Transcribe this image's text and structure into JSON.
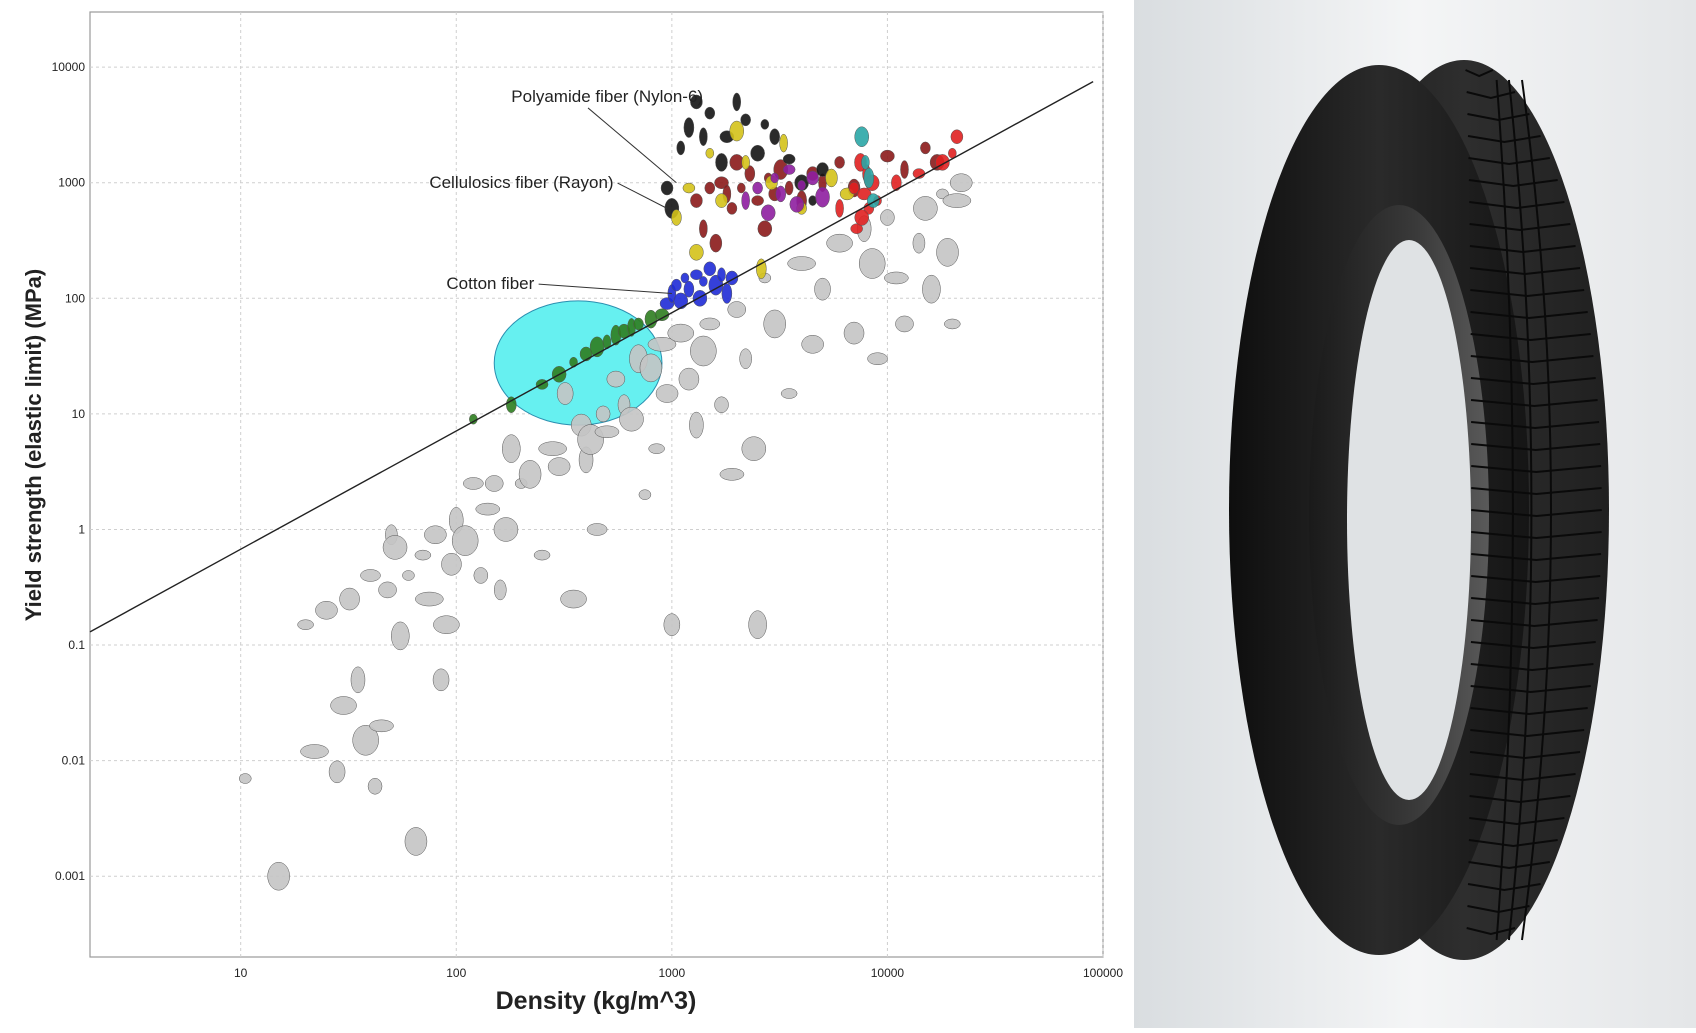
{
  "chart_data": {
    "type": "scatter",
    "title": "",
    "xlabel": "Density (kg/m^3)",
    "ylabel": "Yield strength (elastic limit) (MPa)",
    "x_scale": "log",
    "y_scale": "log",
    "xlim": [
      2,
      100000
    ],
    "ylim": [
      0.0002,
      30000
    ],
    "grid": true,
    "x_ticks": [
      {
        "value": 10,
        "label": "10"
      },
      {
        "value": 100,
        "label": "100"
      },
      {
        "value": 1000,
        "label": "1000"
      },
      {
        "value": 10000,
        "label": "10000"
      },
      {
        "value": 100000,
        "label": "100000"
      }
    ],
    "y_ticks": [
      {
        "value": 0.001,
        "label": "0.001"
      },
      {
        "value": 0.01,
        "label": "0.01"
      },
      {
        "value": 0.1,
        "label": "0.1"
      },
      {
        "value": 1,
        "label": "1"
      },
      {
        "value": 10,
        "label": "10"
      },
      {
        "value": 100,
        "label": "100"
      },
      {
        "value": 1000,
        "label": "1000"
      },
      {
        "value": 10000,
        "label": "10000"
      }
    ],
    "guideline": {
      "x": [
        2,
        90000
      ],
      "y": [
        0.13,
        7500
      ]
    },
    "highlight_region": {
      "x": [
        150,
        900
      ],
      "y": [
        8,
        95
      ]
    },
    "series": [
      {
        "color": "#c4c4c4",
        "points": [
          [
            10.5,
            0.007
          ],
          [
            15,
            0.001
          ],
          [
            20,
            0.15
          ],
          [
            22,
            0.012
          ],
          [
            25,
            0.2
          ],
          [
            28,
            0.008
          ],
          [
            30,
            0.03
          ],
          [
            32,
            0.25
          ],
          [
            35,
            0.05
          ],
          [
            38,
            0.015
          ],
          [
            40,
            0.4
          ],
          [
            42,
            0.006
          ],
          [
            45,
            0.02
          ],
          [
            48,
            0.3
          ],
          [
            50,
            0.9
          ],
          [
            52,
            0.7
          ],
          [
            55,
            0.12
          ],
          [
            60,
            0.4
          ],
          [
            65,
            0.002
          ],
          [
            70,
            0.6
          ],
          [
            75,
            0.25
          ],
          [
            80,
            0.9
          ],
          [
            85,
            0.05
          ],
          [
            90,
            0.15
          ],
          [
            95,
            0.5
          ],
          [
            100,
            1.2
          ],
          [
            110,
            0.8
          ],
          [
            120,
            2.5
          ],
          [
            130,
            0.4
          ],
          [
            140,
            1.5
          ],
          [
            150,
            2.5
          ],
          [
            160,
            0.3
          ],
          [
            170,
            1.0
          ],
          [
            180,
            5
          ],
          [
            200,
            2.5
          ],
          [
            220,
            3
          ],
          [
            250,
            0.6
          ],
          [
            280,
            5
          ],
          [
            300,
            3.5
          ],
          [
            320,
            15
          ],
          [
            350,
            0.25
          ],
          [
            380,
            8
          ],
          [
            400,
            4
          ],
          [
            420,
            6
          ],
          [
            450,
            1.0
          ],
          [
            480,
            10
          ],
          [
            500,
            7
          ],
          [
            550,
            20
          ],
          [
            600,
            12
          ],
          [
            650,
            9
          ],
          [
            700,
            30
          ],
          [
            750,
            2
          ],
          [
            800,
            25
          ],
          [
            850,
            5
          ],
          [
            900,
            40
          ],
          [
            950,
            15
          ],
          [
            1000,
            0.15
          ],
          [
            1100,
            50
          ],
          [
            1200,
            20
          ],
          [
            1300,
            8
          ],
          [
            1400,
            35
          ],
          [
            1500,
            60
          ],
          [
            1700,
            12
          ],
          [
            1900,
            3
          ],
          [
            2000,
            80
          ],
          [
            2200,
            30
          ],
          [
            2400,
            5
          ],
          [
            2500,
            0.15
          ],
          [
            2700,
            150
          ],
          [
            3000,
            60
          ],
          [
            3500,
            15
          ],
          [
            4000,
            200
          ],
          [
            4500,
            40
          ],
          [
            5000,
            120
          ],
          [
            6000,
            300
          ],
          [
            7000,
            50
          ],
          [
            7800,
            400
          ],
          [
            8500,
            200
          ],
          [
            9000,
            30
          ],
          [
            10000,
            500
          ],
          [
            11000,
            150
          ],
          [
            12000,
            60
          ],
          [
            14000,
            300
          ],
          [
            15000,
            600
          ],
          [
            16000,
            120
          ],
          [
            18000,
            800
          ],
          [
            19000,
            250
          ],
          [
            20000,
            60
          ],
          [
            21000,
            700
          ],
          [
            22000,
            1000
          ]
        ]
      },
      {
        "color": "#2e7d1f",
        "points": [
          [
            120,
            9
          ],
          [
            180,
            12
          ],
          [
            250,
            18
          ],
          [
            300,
            22
          ],
          [
            350,
            28
          ],
          [
            400,
            33
          ],
          [
            450,
            38
          ],
          [
            500,
            42
          ],
          [
            550,
            48
          ],
          [
            600,
            52
          ],
          [
            650,
            56
          ],
          [
            700,
            60
          ],
          [
            800,
            66
          ],
          [
            900,
            72
          ]
        ]
      },
      {
        "color": "#1f2bd6",
        "points": [
          [
            950,
            90
          ],
          [
            1000,
            110
          ],
          [
            1050,
            130
          ],
          [
            1100,
            95
          ],
          [
            1150,
            150
          ],
          [
            1200,
            120
          ],
          [
            1300,
            160
          ],
          [
            1350,
            100
          ],
          [
            1400,
            140
          ],
          [
            1500,
            180
          ],
          [
            1600,
            130
          ],
          [
            1700,
            160
          ],
          [
            1800,
            110
          ],
          [
            1900,
            150
          ]
        ]
      },
      {
        "color": "#8b1a1a",
        "points": [
          [
            1300,
            700
          ],
          [
            1400,
            400
          ],
          [
            1500,
            900
          ],
          [
            1600,
            300
          ],
          [
            1700,
            1000
          ],
          [
            1800,
            800
          ],
          [
            1900,
            600
          ],
          [
            2000,
            1500
          ],
          [
            2100,
            900
          ],
          [
            2300,
            1200
          ],
          [
            2500,
            700
          ],
          [
            2700,
            400
          ],
          [
            2800,
            1100
          ],
          [
            3000,
            800
          ],
          [
            3200,
            1300
          ],
          [
            3500,
            900
          ],
          [
            4000,
            700
          ],
          [
            4500,
            1200
          ],
          [
            5000,
            1000
          ],
          [
            6000,
            1500
          ],
          [
            7000,
            900
          ],
          [
            10000,
            1700
          ],
          [
            12000,
            1300
          ],
          [
            15000,
            2000
          ],
          [
            17000,
            1500
          ]
        ]
      },
      {
        "color": "#141414",
        "points": [
          [
            950,
            900
          ],
          [
            1000,
            600
          ],
          [
            1100,
            2000
          ],
          [
            1200,
            3000
          ],
          [
            1300,
            5000
          ],
          [
            1400,
            2500
          ],
          [
            1500,
            4000
          ],
          [
            1700,
            1500
          ],
          [
            1800,
            2500
          ],
          [
            2000,
            5000
          ],
          [
            2200,
            3500
          ],
          [
            2500,
            1800
          ],
          [
            2700,
            3200
          ],
          [
            3000,
            2500
          ],
          [
            3500,
            1600
          ],
          [
            4000,
            1000
          ],
          [
            4500,
            700
          ],
          [
            5000,
            1300
          ]
        ]
      },
      {
        "color": "#d4c21a",
        "points": [
          [
            1050,
            500
          ],
          [
            1200,
            900
          ],
          [
            1300,
            250
          ],
          [
            1500,
            1800
          ],
          [
            1700,
            700
          ],
          [
            2000,
            2800
          ],
          [
            2200,
            1500
          ],
          [
            2600,
            180
          ],
          [
            2900,
            1000
          ],
          [
            3300,
            2200
          ],
          [
            4000,
            600
          ],
          [
            5500,
            1100
          ],
          [
            6500,
            800
          ]
        ]
      },
      {
        "color": "#8e1ea0",
        "points": [
          [
            2200,
            700
          ],
          [
            2500,
            900
          ],
          [
            2800,
            550
          ],
          [
            3000,
            1100
          ],
          [
            3200,
            800
          ],
          [
            3500,
            1300
          ],
          [
            3800,
            650
          ],
          [
            4000,
            950
          ],
          [
            4500,
            1100
          ],
          [
            5000,
            750
          ]
        ]
      },
      {
        "color": "#e02020",
        "points": [
          [
            6000,
            600
          ],
          [
            7000,
            900
          ],
          [
            7500,
            1500
          ],
          [
            7800,
            800
          ],
          [
            8000,
            1200
          ],
          [
            8200,
            600
          ],
          [
            8500,
            1000
          ],
          [
            9000,
            700
          ],
          [
            11000,
            1000
          ],
          [
            14000,
            1200
          ],
          [
            18000,
            1500
          ],
          [
            20000,
            1800
          ],
          [
            21000,
            2500
          ]
        ]
      },
      {
        "color": "#2aa6a6",
        "points": [
          [
            7600,
            2500
          ],
          [
            7900,
            1500
          ],
          [
            8200,
            1100
          ],
          [
            8600,
            700
          ]
        ]
      },
      {
        "color": "#e02020",
        "points": [
          [
            7200,
            400
          ],
          [
            7600,
            500
          ]
        ]
      }
    ],
    "annotations": [
      {
        "label": "Polyamide fiber (Nylon-6)",
        "text_at": [
          180,
          5000
        ],
        "points_to": [
          1050,
          1000
        ]
      },
      {
        "label": "Cellulosics fiber (Rayon)",
        "text_at": [
          75,
          900
        ],
        "points_to": [
          950,
          600
        ]
      },
      {
        "label": "Cotton fiber",
        "text_at": [
          90,
          120
        ],
        "points_to": [
          1000,
          110
        ]
      }
    ]
  },
  "image_panel": {
    "subject": "tire-icon",
    "colors": {
      "tire": "#1a1a1a",
      "background": "#eeeeee"
    }
  }
}
